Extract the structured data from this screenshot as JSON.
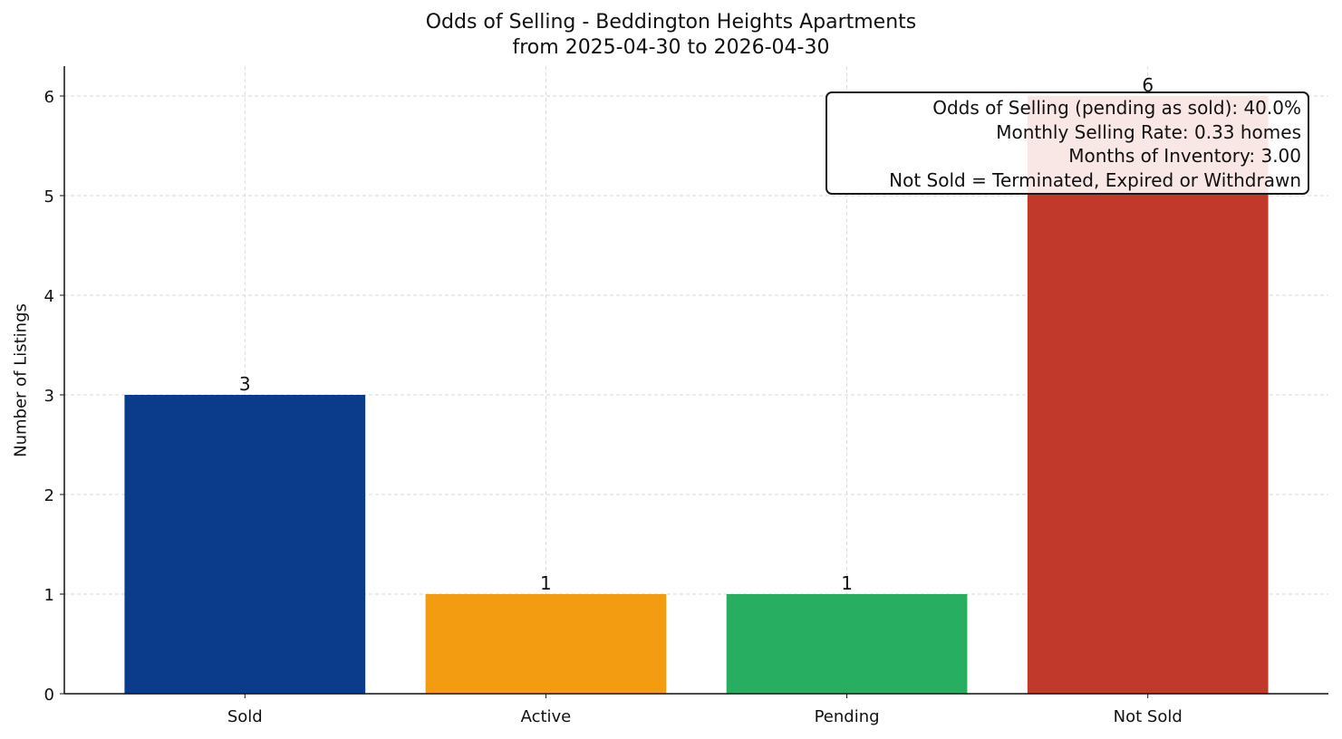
{
  "chart_data": {
    "type": "bar",
    "title": "Odds of Selling - Beddington Heights Apartments",
    "subtitle": "from 2025-04-30 to 2026-04-30",
    "xlabel": "",
    "ylabel": "Number of Listings",
    "categories": [
      "Sold",
      "Active",
      "Pending",
      "Not Sold"
    ],
    "values": [
      3,
      1,
      1,
      6
    ],
    "colors": [
      "#0b3c8c",
      "#f39c12",
      "#27ae60",
      "#c0392b"
    ],
    "ylim": [
      0,
      6.3
    ],
    "yticks": [
      0,
      1,
      2,
      3,
      4,
      5,
      6
    ],
    "grid": true,
    "annotations": {
      "odds": "Odds of Selling (pending as sold): 40.0%",
      "rate": "Monthly Selling Rate: 0.33 homes",
      "inventory": "Months of Inventory: 3.00",
      "note": "Not Sold = Terminated, Expired or Withdrawn"
    }
  }
}
